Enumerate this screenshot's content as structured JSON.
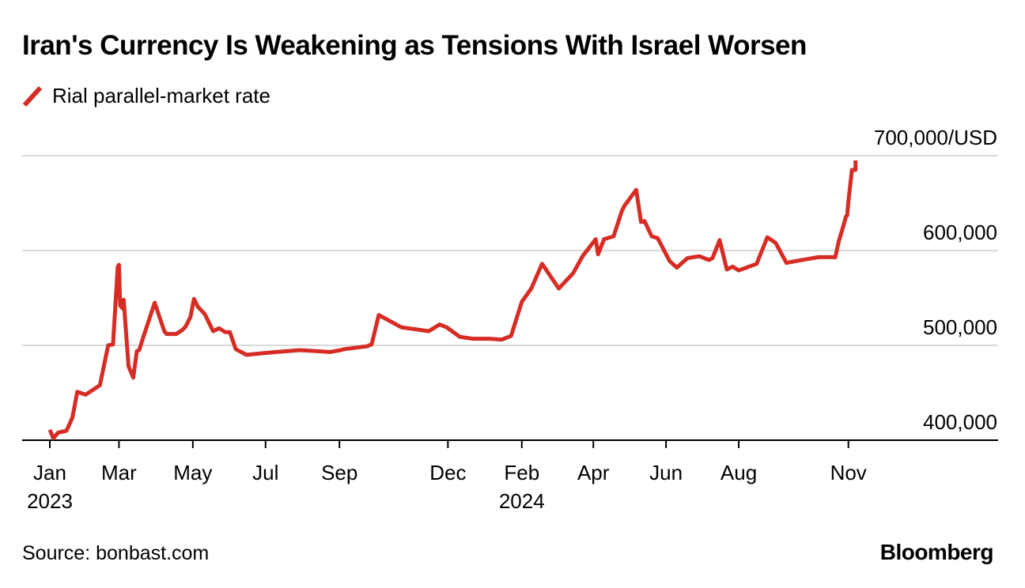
{
  "title": "Iran's Currency Is Weakening as Tensions With Israel Worsen",
  "legend": {
    "label": "Rial parallel-market rate",
    "color": "#d62c24"
  },
  "source": "Source: bonbast.com",
  "brand": "Bloomberg",
  "chart_data": {
    "type": "line",
    "title": "Iran's Currency Is Weakening as Tensions With Israel Worsen",
    "xlabel": "",
    "ylabel": "",
    "ylim": [
      400000,
      700000
    ],
    "grid": true,
    "legend_position": "top-left",
    "x_ticks": [
      {
        "label": "Jan",
        "year": "2023",
        "t": 0
      },
      {
        "label": "Mar",
        "year": "",
        "t": 58
      },
      {
        "label": "May",
        "year": "",
        "t": 120
      },
      {
        "label": "Jul",
        "year": "",
        "t": 181
      },
      {
        "label": "Sep",
        "year": "",
        "t": 243
      },
      {
        "label": "Dec",
        "year": "",
        "t": 334
      },
      {
        "label": "Feb",
        "year": "2024",
        "t": 396
      },
      {
        "label": "Apr",
        "year": "",
        "t": 456
      },
      {
        "label": "Jun",
        "year": "",
        "t": 517
      },
      {
        "label": "Aug",
        "year": "",
        "t": 578
      },
      {
        "label": "Nov",
        "year": "",
        "t": 670
      }
    ],
    "y_ticks": [
      {
        "value": 400000,
        "label": "400,000"
      },
      {
        "value": 500000,
        "label": "500,000"
      },
      {
        "value": 600000,
        "label": "600,000"
      },
      {
        "value": 700000,
        "label": "700,000/USD"
      }
    ],
    "series": [
      {
        "name": "Rial parallel-market rate",
        "color": "#d62c24",
        "t": [
          0,
          3,
          7,
          14,
          19,
          23,
          30,
          42,
          49,
          53,
          57,
          58,
          59,
          61,
          62,
          66,
          70,
          73,
          75,
          78,
          88,
          96,
          98,
          101,
          106,
          111,
          114,
          118,
          121,
          124,
          130,
          137,
          142,
          147,
          151,
          156,
          165,
          173,
          190,
          210,
          235,
          244,
          247,
          266,
          270,
          276,
          295,
          318,
          327,
          333,
          344,
          355,
          369,
          379,
          383,
          387,
          396,
          404,
          413,
          427,
          439,
          447,
          458,
          460,
          465,
          473,
          480,
          482,
          492,
          496,
          499,
          505,
          510,
          520,
          526,
          535,
          545,
          553,
          556,
          562,
          568,
          573,
          578,
          593,
          602,
          609,
          618,
          631,
          645,
          659,
          662,
          666,
          668,
          669,
          670,
          673,
          676,
          676
        ],
        "values": [
          411000,
          402000,
          408000,
          410000,
          424000,
          451000,
          448000,
          458000,
          500000,
          501000,
          583000,
          585000,
          542000,
          539000,
          548000,
          478000,
          466000,
          494000,
          495000,
          507000,
          545000,
          515000,
          512000,
          512000,
          512000,
          516000,
          520000,
          530000,
          549000,
          541000,
          533000,
          515000,
          518000,
          514000,
          514000,
          496000,
          490000,
          491000,
          493000,
          495000,
          493000,
          495000,
          496000,
          499000,
          501000,
          532000,
          519000,
          515000,
          522000,
          519000,
          509000,
          507000,
          507000,
          506000,
          508000,
          510000,
          546000,
          560000,
          586000,
          560000,
          576000,
          594000,
          612000,
          596000,
          612000,
          615000,
          642000,
          647000,
          664000,
          630000,
          631000,
          615000,
          613000,
          589000,
          582000,
          592000,
          594000,
          590000,
          592000,
          611000,
          580000,
          583000,
          579000,
          586000,
          614000,
          608000,
          587000,
          590000,
          593000,
          593000,
          610000,
          627000,
          636000,
          637000,
          652000,
          685000,
          685000,
          695000
        ]
      }
    ]
  }
}
